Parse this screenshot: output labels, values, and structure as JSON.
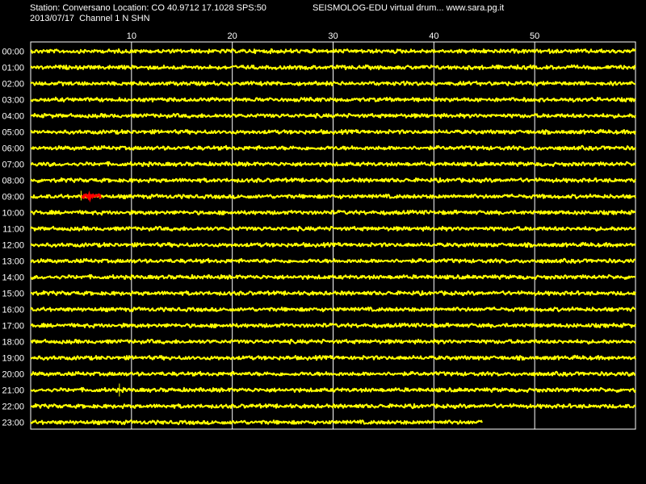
{
  "header": {
    "station_line": "Station: Conversano Location: CO 40.9712 17.1028 SPS:50",
    "app_line": "SEISMOLOG-EDU virtual drum... www.sara.pg.it",
    "date_line": "2013/07/17  Channel 1 N SHN"
  },
  "colors": {
    "background": "#000000",
    "trace": "#ffff00",
    "event": "#ff0000",
    "grid": "#ffffff",
    "text": "#ffffff"
  },
  "chart_data": {
    "type": "line",
    "x_unit": "minutes",
    "xlim": [
      0,
      60
    ],
    "x_ticks": [
      10,
      20,
      30,
      40,
      50
    ],
    "rows": [
      {
        "label": "00:00",
        "end_minute": 60
      },
      {
        "label": "01:00",
        "end_minute": 60
      },
      {
        "label": "02:00",
        "end_minute": 60
      },
      {
        "label": "03:00",
        "end_minute": 60
      },
      {
        "label": "04:00",
        "end_minute": 60
      },
      {
        "label": "05:00",
        "end_minute": 60
      },
      {
        "label": "06:00",
        "end_minute": 60
      },
      {
        "label": "07:00",
        "end_minute": 60
      },
      {
        "label": "08:00",
        "end_minute": 60
      },
      {
        "label": "09:00",
        "end_minute": 60,
        "event": {
          "start_minute": 5,
          "end_minute": 7
        }
      },
      {
        "label": "10:00",
        "end_minute": 60
      },
      {
        "label": "11:00",
        "end_minute": 60
      },
      {
        "label": "12:00",
        "end_minute": 60
      },
      {
        "label": "13:00",
        "end_minute": 60
      },
      {
        "label": "14:00",
        "end_minute": 60
      },
      {
        "label": "15:00",
        "end_minute": 60
      },
      {
        "label": "16:00",
        "end_minute": 60
      },
      {
        "label": "17:00",
        "end_minute": 60
      },
      {
        "label": "18:00",
        "end_minute": 60
      },
      {
        "label": "19:00",
        "end_minute": 60
      },
      {
        "label": "20:00",
        "end_minute": 60
      },
      {
        "label": "21:00",
        "end_minute": 60,
        "spike_minute": 8.8
      },
      {
        "label": "22:00",
        "end_minute": 60
      },
      {
        "label": "23:00",
        "end_minute": 44.8
      }
    ],
    "grid": true
  }
}
